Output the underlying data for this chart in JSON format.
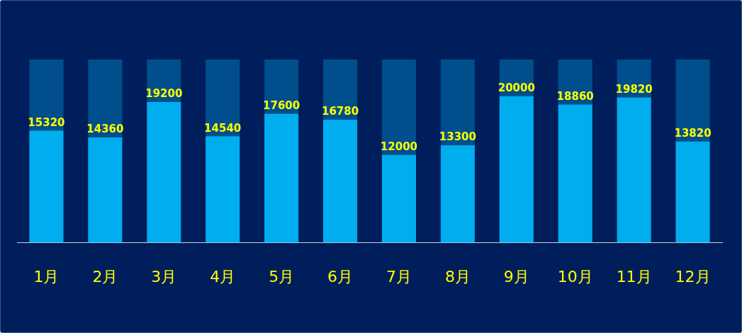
{
  "chart_data": {
    "type": "bar",
    "categories": [
      "1月",
      "2月",
      "3月",
      "4月",
      "5月",
      "6月",
      "7月",
      "8月",
      "9月",
      "10月",
      "11月",
      "12月"
    ],
    "stacked": true,
    "series": [
      {
        "color": "#00aeef",
        "values": [
          15320,
          14360,
          19200,
          14540,
          17600,
          16780,
          12000,
          13300,
          20000,
          18860,
          19820,
          13820
        ],
        "value_labels": [
          "15320",
          "14360",
          "19200",
          "14540",
          "17600",
          "16780",
          "12000",
          "13300",
          "20000",
          "18860",
          "19820",
          "13820"
        ]
      },
      {
        "color": "#004e8c",
        "values": [
          9680,
          10640,
          5800,
          10460,
          7400,
          8220,
          13000,
          11700,
          5000,
          6140,
          5180,
          11180
        ]
      }
    ],
    "ylim": [
      0,
      25000
    ],
    "tick_labels": "x",
    "grid": false,
    "legend": false
  }
}
